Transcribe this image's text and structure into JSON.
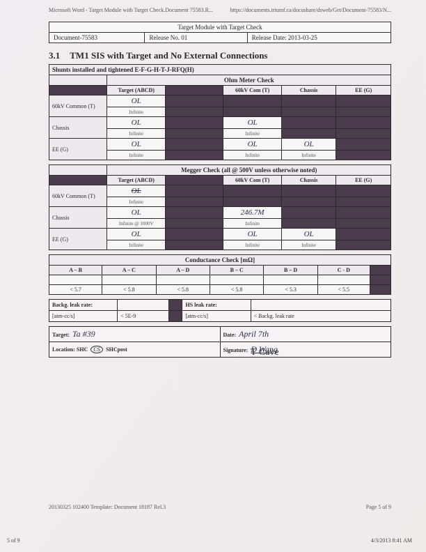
{
  "browser": {
    "left": "Microsoft Word - Target Module with Target Check.Document 75583.R...",
    "right": "https://documents.triumf.ca/docushare/dsweb/Get/Document-75583/N..."
  },
  "docHeader": {
    "title": "Target Module with Target Check",
    "docId": "Document-75583",
    "release": "Release No. 01",
    "releaseDate": "Release Date: 2013-03-25"
  },
  "section": {
    "num": "3.1",
    "title": "TM1 SIS with Target and No External Connections"
  },
  "shuntsRow": "Shunts installed and tightened E-F-G-H-T-J-RFQ(H)",
  "ohm": {
    "title": "Ohm Meter Check",
    "cols": [
      "Target (ABCD)",
      "",
      "60kV Com (T)",
      "Chassis",
      "EE (G)"
    ],
    "rows": [
      {
        "label": "60kV Common (T)",
        "cells": [
          {
            "v": "OL",
            "s": "Infinite"
          },
          null,
          null,
          null,
          null
        ]
      },
      {
        "label": "Chassis",
        "cells": [
          {
            "v": "OL",
            "s": "Infinite"
          },
          null,
          {
            "v": "OL",
            "s": "Infinite"
          },
          null,
          null
        ]
      },
      {
        "label": "EE (G)",
        "cells": [
          {
            "v": "OL",
            "s": "Infinite"
          },
          null,
          {
            "v": "OL",
            "s": "Infinite"
          },
          {
            "v": "OL",
            "s": "Infinite"
          },
          null
        ]
      }
    ]
  },
  "megger": {
    "title": "Megger Check (all @ 500V unless otherwise noted)",
    "cols": [
      "Target (ABCD)",
      "",
      "60kV Com (T)",
      "Chassis",
      "EE (G)"
    ],
    "rows": [
      {
        "label": "60kV Common (T)",
        "cells": [
          {
            "v": "OL",
            "s": "Infinite",
            "strike": true
          },
          null,
          null,
          null,
          null
        ]
      },
      {
        "label": "Chassis",
        "cells": [
          {
            "v": "OL",
            "s": "Infinite @ 1000V"
          },
          null,
          {
            "v": "246.7M",
            "s": "Infinite"
          },
          null,
          null
        ]
      },
      {
        "label": "EE (G)",
        "cells": [
          {
            "v": "OL",
            "s": "Infinite"
          },
          null,
          {
            "v": "OL",
            "s": "Infinite"
          },
          {
            "v": "OL",
            "s": "Infinite"
          },
          null
        ]
      }
    ]
  },
  "cond": {
    "title": "Conductance Check [mΩ]",
    "cols": [
      "A – B",
      "A – C",
      "A – D",
      "B – C",
      "B – D",
      "C - D",
      ""
    ],
    "limits": [
      "< 5.7",
      "< 5.8",
      "< 5.8",
      "< 5.8",
      "< 5.3",
      "< 5.5",
      ""
    ]
  },
  "leak": {
    "l1": "Backg. leak rate:",
    "l1u": "[atm-cc/s]",
    "l1lim": "< 5E-9",
    "l2": "HS leak rate:",
    "l2u": "[atm-cc/s]",
    "l2lim": "< Backg. leak rate"
  },
  "sign": {
    "targetLabel": "Target:",
    "targetVal": "Ta  #39",
    "dateLabel": "Date:",
    "dateVal": "April  7th",
    "locLabel": "Location:      SHC",
    "locCS": "CS",
    "locPost": "SHCpost",
    "sigLabel": "Signature:",
    "sigVal": "D Wang",
    "extraSig": "T Cave"
  },
  "footer": {
    "template": "20130325 102400 Template: Document 18187 Rel.3",
    "page": "Page 5 of 9",
    "corner": "5 of 9",
    "ts": "4/3/2013 8:41 AM"
  }
}
